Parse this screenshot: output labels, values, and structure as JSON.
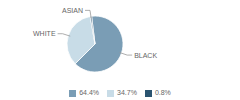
{
  "chart_data": {
    "type": "pie",
    "categories": [
      "BLACK",
      "WHITE",
      "ASIAN"
    ],
    "values": [
      64.4,
      34.7,
      0.8
    ],
    "value_labels": [
      "64.4%",
      "34.7%",
      "0.8%"
    ],
    "colors": [
      "#7a9db5",
      "#c8dce7",
      "#2a5470"
    ],
    "legend": "bottom"
  }
}
